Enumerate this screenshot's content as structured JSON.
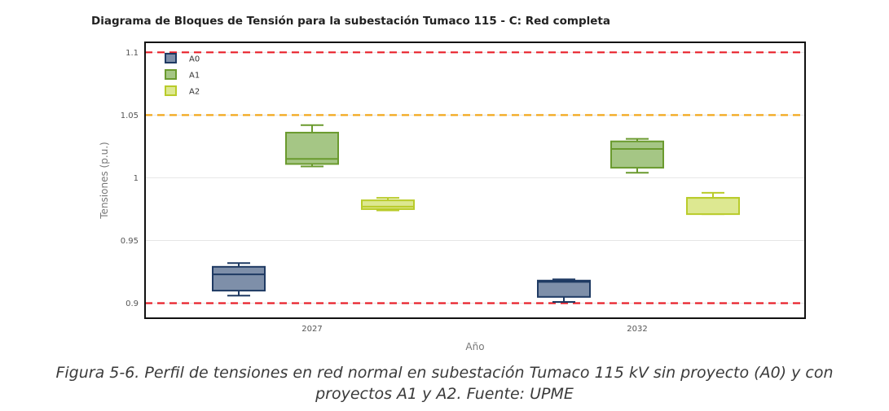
{
  "chart_data": {
    "type": "box",
    "title": "Diagrama de Bloques de Tensión para la subestación Tumaco 115 - C: Red completa",
    "xlabel": "Año",
    "ylabel": "Tensiones (p.u.)",
    "categories": [
      "2027",
      "2032"
    ],
    "ylim": [
      0.888,
      1.108
    ],
    "yticks": [
      0.9,
      0.95,
      1,
      1.05,
      1.1
    ],
    "ytick_labels": [
      "0.9",
      "0.95",
      "1",
      "1.05",
      "1.1"
    ],
    "grid": true,
    "legend_position": "top-left",
    "reference_lines": [
      {
        "y": 1.1,
        "color": "#e8202a",
        "style": "dashed"
      },
      {
        "y": 1.05,
        "color": "#f2a71b",
        "style": "dashed"
      },
      {
        "y": 0.9,
        "color": "#e8202a",
        "style": "dashed"
      }
    ],
    "series": [
      {
        "name": "A0",
        "color": "#7e8fa9",
        "stroke": "#1f3a63",
        "boxes": [
          {
            "min": 0.906,
            "q1": 0.91,
            "median": 0.923,
            "q3": 0.929,
            "max": 0.932
          },
          {
            "min": 0.901,
            "q1": 0.905,
            "median": 0.917,
            "q3": 0.918,
            "max": 0.919
          }
        ]
      },
      {
        "name": "A1",
        "color": "#a5c685",
        "stroke": "#6a9a2e",
        "boxes": [
          {
            "min": 1.009,
            "q1": 1.011,
            "median": 1.015,
            "q3": 1.036,
            "max": 1.042
          },
          {
            "min": 1.004,
            "q1": 1.008,
            "median": 1.023,
            "q3": 1.029,
            "max": 1.031
          }
        ]
      },
      {
        "name": "A2",
        "color": "#dde891",
        "stroke": "#b9cb2a",
        "boxes": [
          {
            "min": 0.974,
            "q1": 0.975,
            "median": 0.977,
            "q3": 0.982,
            "max": 0.984
          },
          {
            "min": 0.971,
            "q1": 0.971,
            "median": 0.984,
            "q3": 0.984,
            "max": 0.988
          }
        ]
      }
    ]
  },
  "caption": {
    "line1": "Figura 5-6. Perfil de tensiones en red normal en subestación Tumaco 115 kV sin proyecto (A0) y con",
    "line2": "proyectos A1 y A2. Fuente: UPME"
  }
}
